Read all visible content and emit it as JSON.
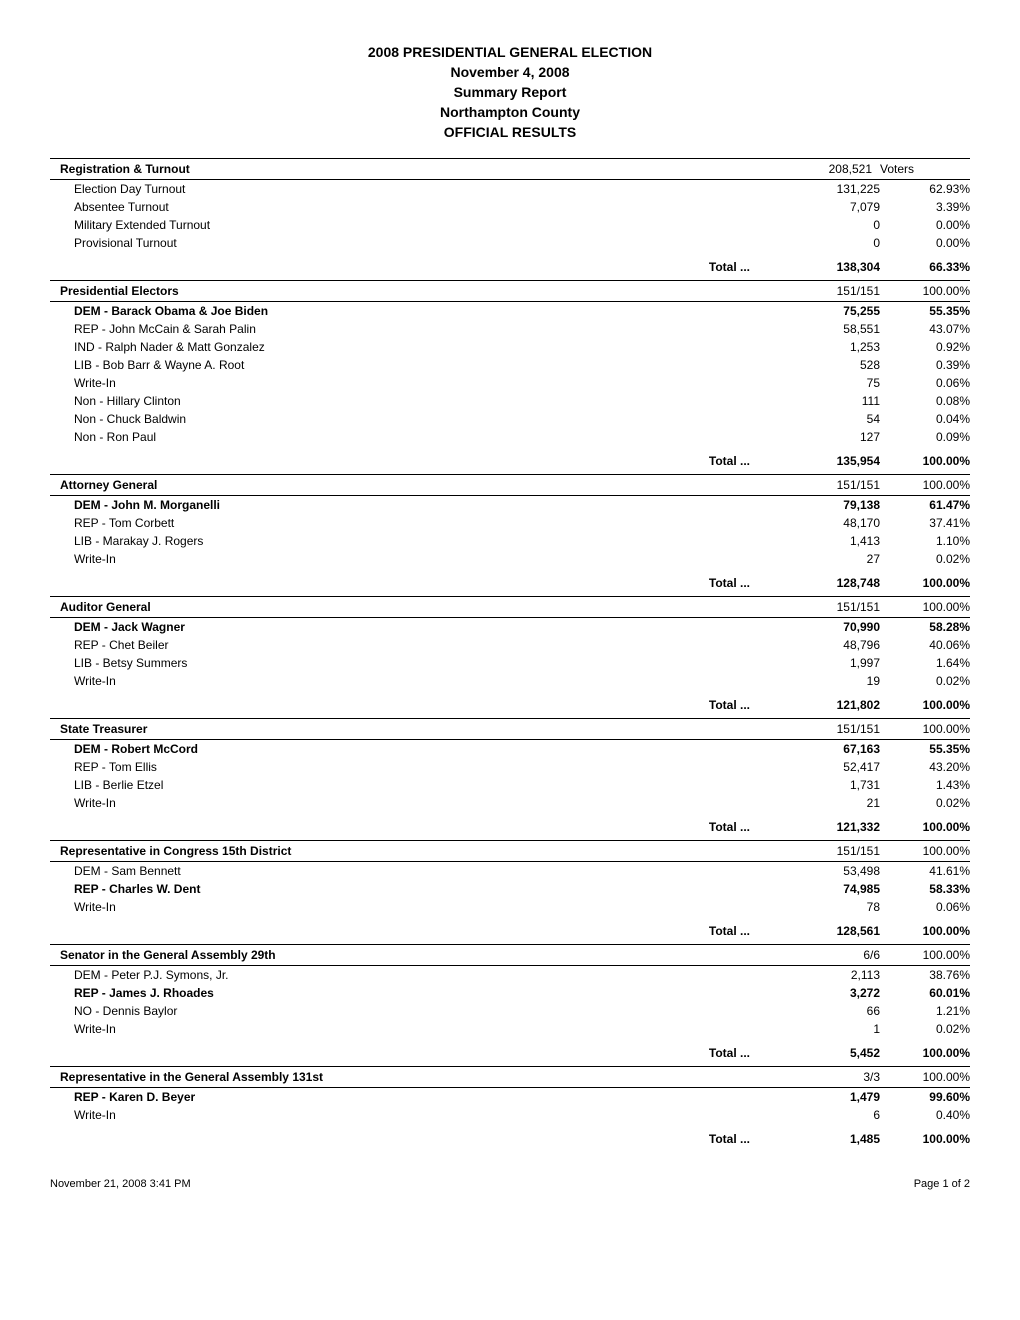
{
  "header": {
    "title": "2008 PRESIDENTIAL GENERAL ELECTION",
    "date": "November 4, 2008",
    "report": "Summary Report",
    "county": "Northampton County",
    "results": "OFFICIAL RESULTS"
  },
  "registration": {
    "title": "Registration & Turnout",
    "ratio": "208,521",
    "voters_label": "Voters",
    "rows": [
      {
        "label": "Election Day Turnout",
        "num": "131,225",
        "pct": "62.93%"
      },
      {
        "label": "Absentee Turnout",
        "num": "7,079",
        "pct": "3.39%"
      },
      {
        "label": "Military Extended Turnout",
        "num": "0",
        "pct": "0.00%"
      },
      {
        "label": "Provisional Turnout",
        "num": "0",
        "pct": "0.00%"
      }
    ],
    "total": {
      "label": "Total ...",
      "num": "138,304",
      "pct": "66.33%"
    }
  },
  "sections": [
    {
      "title": "Presidential Electors",
      "ratio": "151/151",
      "ratio_pct": "100.00%",
      "winner_index": 0,
      "rows": [
        {
          "label": "DEM - Barack Obama & Joe Biden",
          "num": "75,255",
          "pct": "55.35%"
        },
        {
          "label": "REP - John McCain & Sarah Palin",
          "num": "58,551",
          "pct": "43.07%"
        },
        {
          "label": "IND - Ralph Nader & Matt Gonzalez",
          "num": "1,253",
          "pct": "0.92%"
        },
        {
          "label": "LIB - Bob Barr & Wayne A. Root",
          "num": "528",
          "pct": "0.39%"
        },
        {
          "label": "Write-In",
          "num": "75",
          "pct": "0.06%"
        },
        {
          "label": "Non - Hillary Clinton",
          "num": "111",
          "pct": "0.08%"
        },
        {
          "label": "Non - Chuck Baldwin",
          "num": "54",
          "pct": "0.04%"
        },
        {
          "label": "Non - Ron Paul",
          "num": "127",
          "pct": "0.09%"
        }
      ],
      "total": {
        "label": "Total ...",
        "num": "135,954",
        "pct": "100.00%"
      }
    },
    {
      "title": "Attorney General",
      "ratio": "151/151",
      "ratio_pct": "100.00%",
      "winner_index": 0,
      "rows": [
        {
          "label": "DEM - John M. Morganelli",
          "num": "79,138",
          "pct": "61.47%"
        },
        {
          "label": "REP - Tom Corbett",
          "num": "48,170",
          "pct": "37.41%"
        },
        {
          "label": "LIB - Marakay J. Rogers",
          "num": "1,413",
          "pct": "1.10%"
        },
        {
          "label": "Write-In",
          "num": "27",
          "pct": "0.02%"
        }
      ],
      "total": {
        "label": "Total ...",
        "num": "128,748",
        "pct": "100.00%"
      }
    },
    {
      "title": "Auditor General",
      "ratio": "151/151",
      "ratio_pct": "100.00%",
      "winner_index": 0,
      "rows": [
        {
          "label": "DEM - Jack Wagner",
          "num": "70,990",
          "pct": "58.28%"
        },
        {
          "label": "REP - Chet Beiler",
          "num": "48,796",
          "pct": "40.06%"
        },
        {
          "label": "LIB - Betsy Summers",
          "num": "1,997",
          "pct": "1.64%"
        },
        {
          "label": "Write-In",
          "num": "19",
          "pct": "0.02%"
        }
      ],
      "total": {
        "label": "Total ...",
        "num": "121,802",
        "pct": "100.00%"
      }
    },
    {
      "title": "State Treasurer",
      "ratio": "151/151",
      "ratio_pct": "100.00%",
      "winner_index": 0,
      "rows": [
        {
          "label": "DEM - Robert McCord",
          "num": "67,163",
          "pct": "55.35%"
        },
        {
          "label": "REP - Tom Ellis",
          "num": "52,417",
          "pct": "43.20%"
        },
        {
          "label": "LIB - Berlie Etzel",
          "num": "1,731",
          "pct": "1.43%"
        },
        {
          "label": "Write-In",
          "num": "21",
          "pct": "0.02%"
        }
      ],
      "total": {
        "label": "Total ...",
        "num": "121,332",
        "pct": "100.00%"
      }
    },
    {
      "title": "Representative in Congress 15th District",
      "ratio": "151/151",
      "ratio_pct": "100.00%",
      "winner_index": 1,
      "rows": [
        {
          "label": "DEM - Sam Bennett",
          "num": "53,498",
          "pct": "41.61%"
        },
        {
          "label": "REP - Charles W. Dent",
          "num": "74,985",
          "pct": "58.33%"
        },
        {
          "label": "Write-In",
          "num": "78",
          "pct": "0.06%"
        }
      ],
      "total": {
        "label": "Total ...",
        "num": "128,561",
        "pct": "100.00%"
      }
    },
    {
      "title": "Senator in the General Assembly 29th",
      "ratio": "6/6",
      "ratio_pct": "100.00%",
      "winner_index": 1,
      "rows": [
        {
          "label": "DEM - Peter P.J. Symons, Jr.",
          "num": "2,113",
          "pct": "38.76%"
        },
        {
          "label": "REP - James J. Rhoades",
          "num": "3,272",
          "pct": "60.01%"
        },
        {
          "label": "NO  - Dennis Baylor",
          "num": "66",
          "pct": "1.21%"
        },
        {
          "label": "Write-In",
          "num": "1",
          "pct": "0.02%"
        }
      ],
      "total": {
        "label": "Total ...",
        "num": "5,452",
        "pct": "100.00%"
      }
    },
    {
      "title": "Representative in the General Assembly 131st",
      "ratio": "3/3",
      "ratio_pct": "100.00%",
      "winner_index": 0,
      "rows": [
        {
          "label": "REP - Karen D. Beyer",
          "num": "1,479",
          "pct": "99.60%"
        },
        {
          "label": "Write-In",
          "num": "6",
          "pct": "0.40%"
        }
      ],
      "total": {
        "label": "Total ...",
        "num": "1,485",
        "pct": "100.00%"
      }
    }
  ],
  "footer": {
    "timestamp": "November 21, 2008 3:41 PM",
    "page": "Page 1 of 2"
  }
}
